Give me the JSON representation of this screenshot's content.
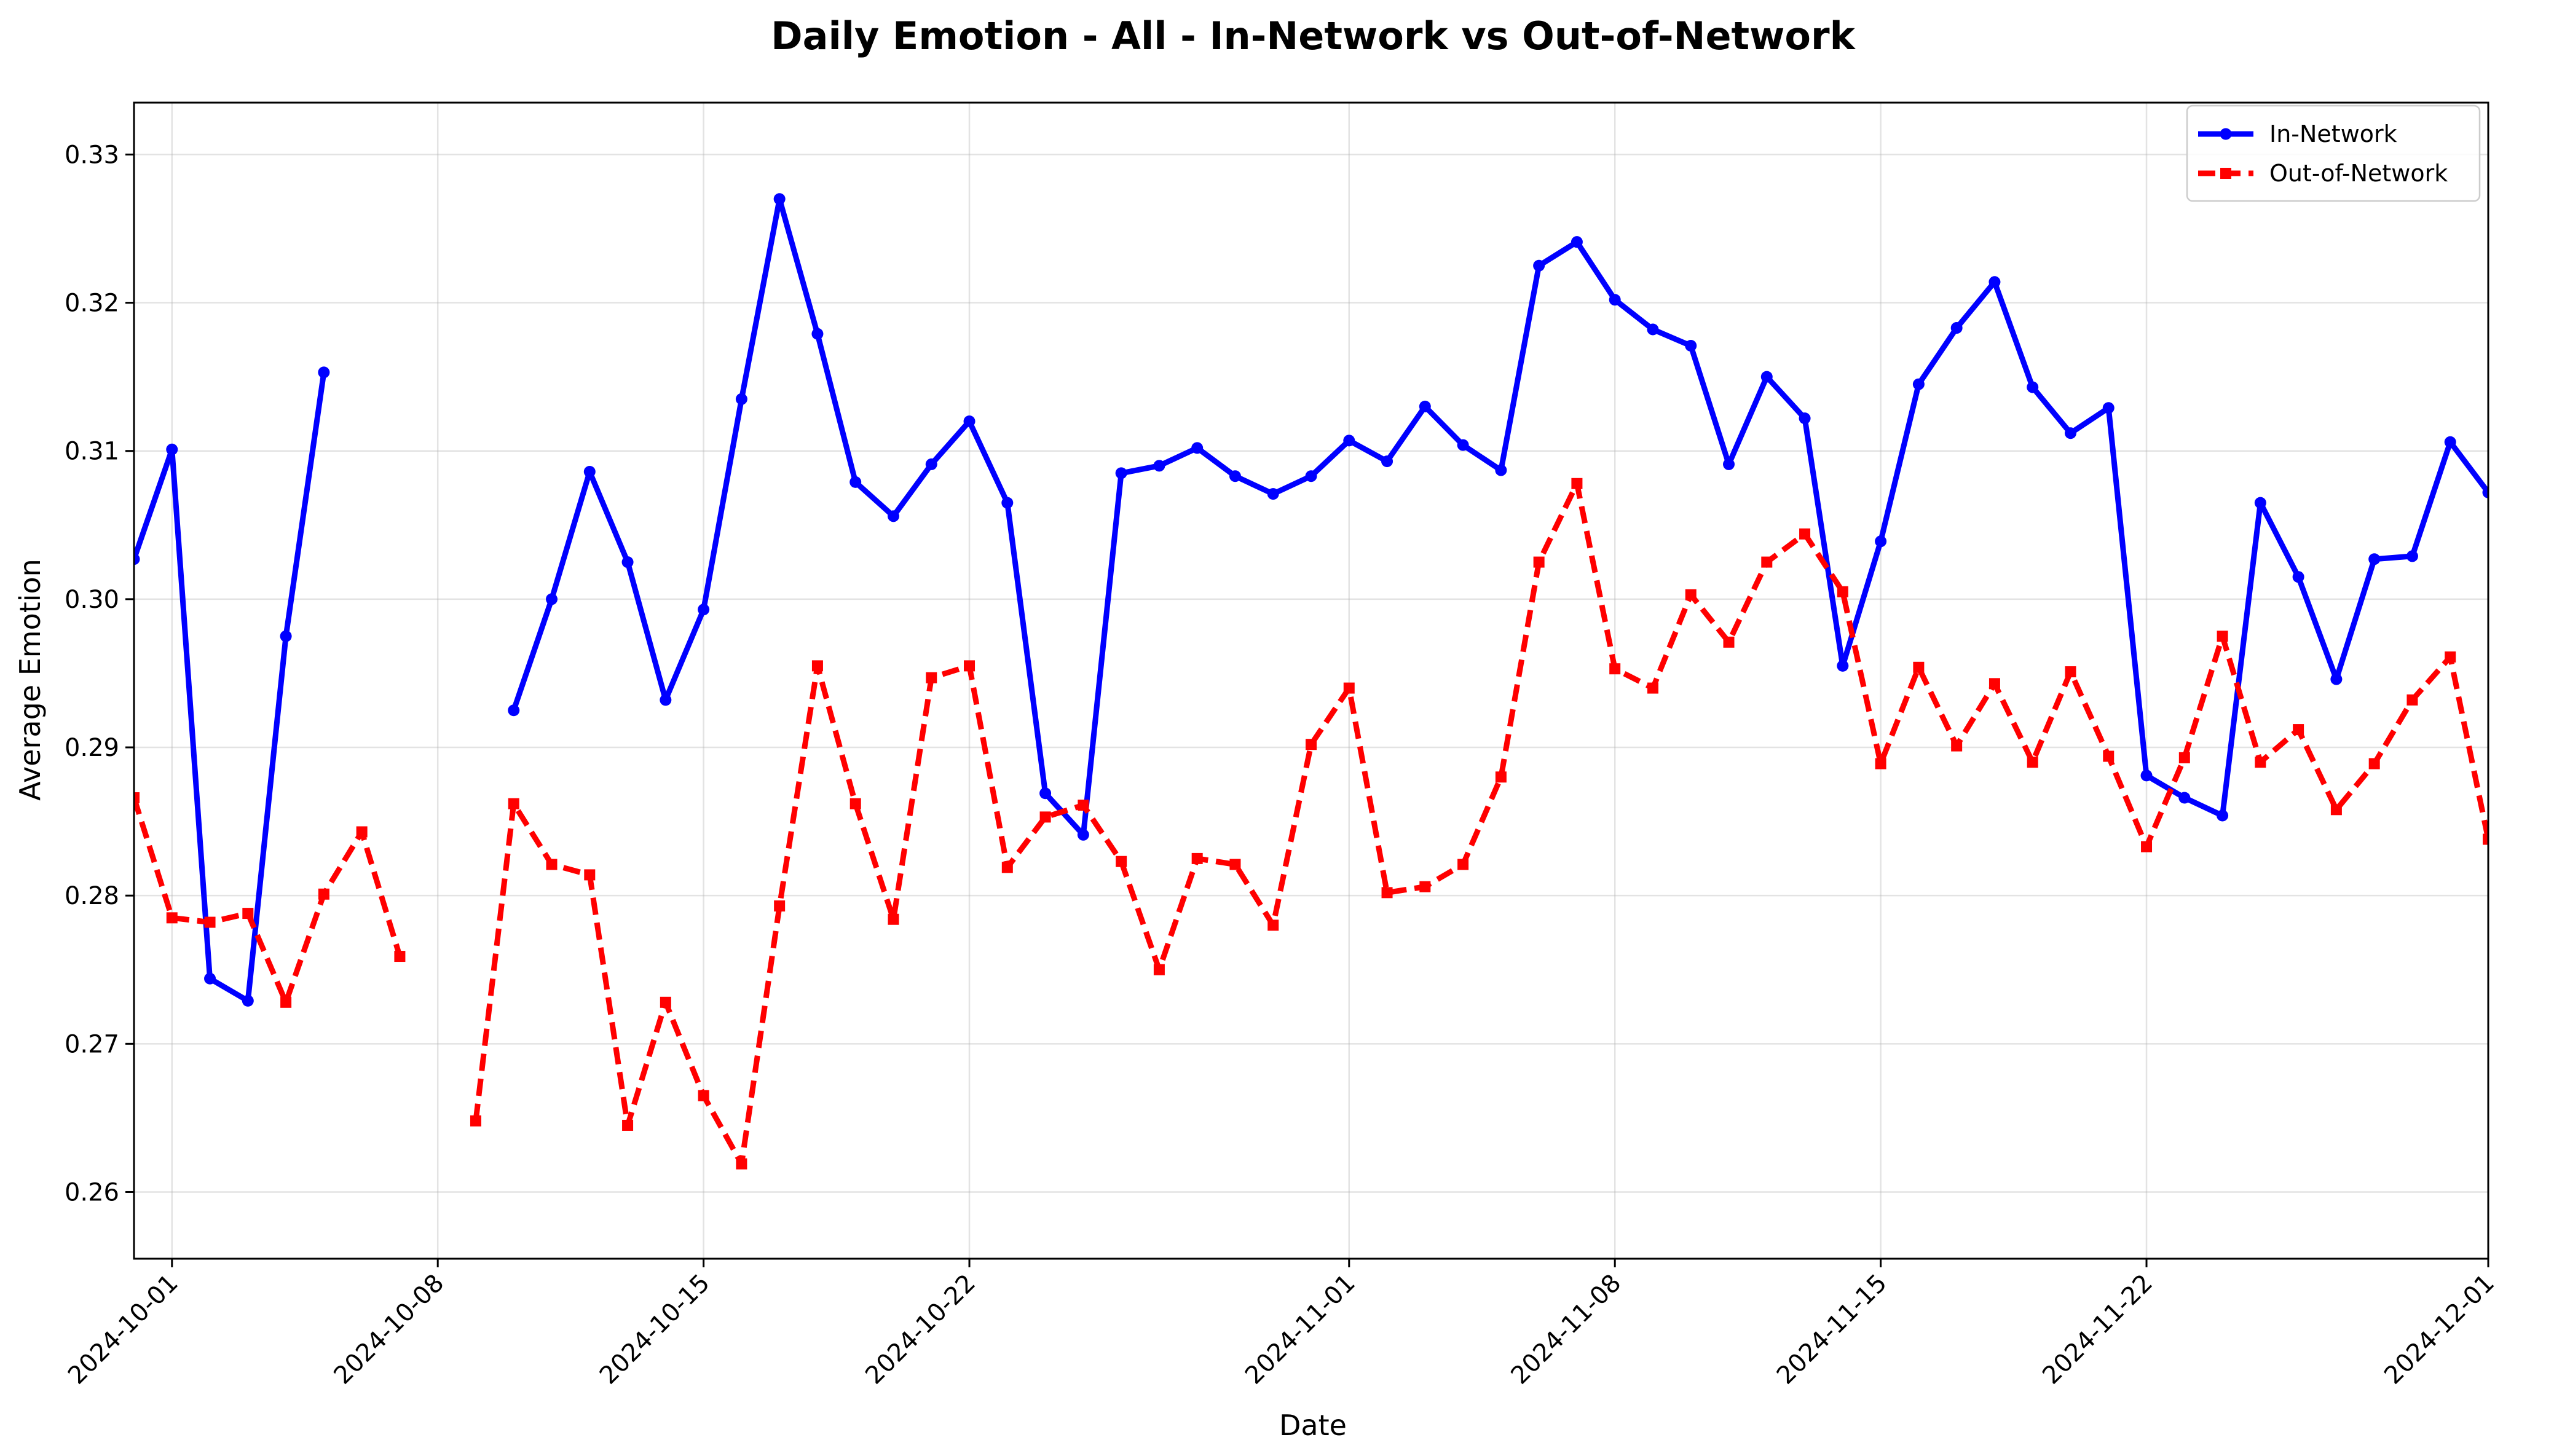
{
  "chart_data": {
    "type": "line",
    "title": "Daily Emotion - All - In-Network vs Out-of-Network",
    "xlabel": "Date",
    "ylabel": "Average Emotion",
    "xlim": [
      "2024-09-30",
      "2024-12-01"
    ],
    "ylim": [
      0.2555,
      0.3335
    ],
    "grid": true,
    "legend_position": "top-right",
    "x_ticks": [
      "2024-10-01",
      "2024-10-08",
      "2024-10-15",
      "2024-10-22",
      "2024-11-01",
      "2024-11-08",
      "2024-11-15",
      "2024-11-22",
      "2024-12-01"
    ],
    "y_ticks": [
      "0.26",
      "0.27",
      "0.28",
      "0.29",
      "0.30",
      "0.31",
      "0.32",
      "0.33"
    ],
    "x": [
      "2024-09-30",
      "2024-10-01",
      "2024-10-02",
      "2024-10-03",
      "2024-10-04",
      "2024-10-05",
      "2024-10-06",
      "2024-10-07",
      "2024-10-08",
      "2024-10-09",
      "2024-10-10",
      "2024-10-11",
      "2024-10-12",
      "2024-10-13",
      "2024-10-14",
      "2024-10-15",
      "2024-10-16",
      "2024-10-17",
      "2024-10-18",
      "2024-10-19",
      "2024-10-20",
      "2024-10-21",
      "2024-10-22",
      "2024-10-23",
      "2024-10-24",
      "2024-10-25",
      "2024-10-26",
      "2024-10-27",
      "2024-10-28",
      "2024-10-29",
      "2024-10-30",
      "2024-10-31",
      "2024-11-01",
      "2024-11-02",
      "2024-11-03",
      "2024-11-04",
      "2024-11-05",
      "2024-11-06",
      "2024-11-07",
      "2024-11-08",
      "2024-11-09",
      "2024-11-10",
      "2024-11-11",
      "2024-11-12",
      "2024-11-13",
      "2024-11-14",
      "2024-11-15",
      "2024-11-16",
      "2024-11-17",
      "2024-11-18",
      "2024-11-19",
      "2024-11-20",
      "2024-11-21",
      "2024-11-22",
      "2024-11-23",
      "2024-11-24",
      "2024-11-25",
      "2024-11-26",
      "2024-11-27",
      "2024-11-28",
      "2024-11-29",
      "2024-11-30",
      "2024-12-01"
    ],
    "series": [
      {
        "name": "In-Network",
        "color": "#0000ff",
        "line_style": "solid",
        "marker": "circle",
        "values": [
          0.3027,
          0.3101,
          0.2744,
          0.2729,
          0.2975,
          0.3153,
          null,
          null,
          null,
          null,
          0.2925,
          0.3,
          0.3086,
          0.3025,
          0.2932,
          0.2993,
          0.3135,
          0.327,
          0.3179,
          0.3079,
          0.3056,
          0.3091,
          0.312,
          0.3065,
          0.2869,
          0.2841,
          0.3085,
          0.309,
          0.3102,
          0.3083,
          0.3071,
          0.3083,
          0.3107,
          0.3093,
          0.313,
          0.3104,
          0.3087,
          0.3225,
          0.3241,
          0.3202,
          0.3182,
          0.3171,
          0.3091,
          0.315,
          0.3122,
          0.2955,
          0.3039,
          0.3145,
          0.3183,
          0.3214,
          0.3143,
          0.3112,
          0.3129,
          0.2881,
          0.2866,
          0.2854,
          0.3065,
          0.3015,
          0.2946,
          0.3027,
          0.3029,
          0.3106,
          0.3072
        ]
      },
      {
        "name": "Out-of-Network",
        "color": "#ff0000",
        "line_style": "dashed",
        "marker": "square",
        "values": [
          0.2866,
          0.2785,
          0.2782,
          0.2788,
          0.2728,
          0.2801,
          0.2843,
          0.2759,
          null,
          0.2648,
          0.2862,
          0.2821,
          0.2814,
          0.2645,
          0.2728,
          0.2665,
          0.2619,
          0.2793,
          0.2955,
          0.2862,
          0.2784,
          0.2947,
          0.2955,
          0.2819,
          0.2853,
          0.2861,
          0.2823,
          0.275,
          0.2825,
          0.2821,
          0.278,
          0.2902,
          0.294,
          0.2802,
          0.2806,
          0.2821,
          0.288,
          0.3025,
          0.3078,
          0.2953,
          0.294,
          0.3003,
          0.2971,
          0.3025,
          0.3044,
          0.3005,
          0.2889,
          0.2954,
          0.2901,
          0.2943,
          0.289,
          0.2951,
          0.2894,
          0.2833,
          0.2893,
          0.2975,
          0.289,
          0.2912,
          0.2858,
          0.2889,
          0.2932,
          0.2961,
          0.2838
        ]
      }
    ]
  }
}
